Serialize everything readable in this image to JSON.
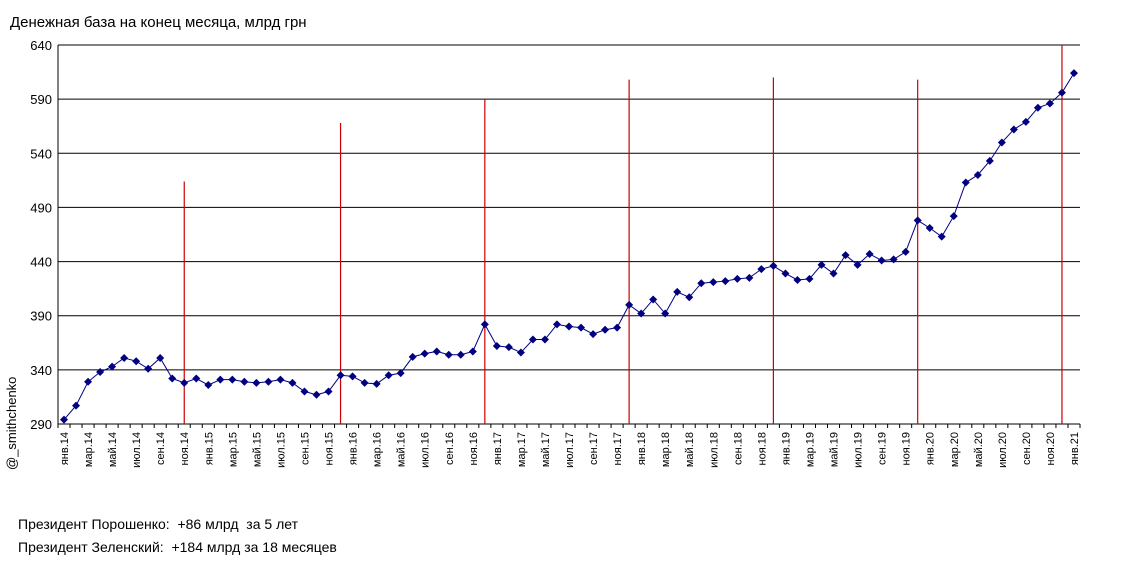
{
  "chart_data": {
    "type": "line",
    "title": "Денежная база на конец месяца, млрд грн",
    "xlabel": "",
    "ylabel": "",
    "ylim": [
      290,
      640
    ],
    "yticks": [
      290,
      340,
      390,
      440,
      490,
      540,
      590,
      640
    ],
    "grid": "horizontal",
    "x": [
      "янв.14",
      "фев.14",
      "мар.14",
      "апр.14",
      "май.14",
      "июн.14",
      "июл.14",
      "авг.14",
      "сен.14",
      "окт.14",
      "ноя.14",
      "дек.14",
      "янв.15",
      "фев.15",
      "мар.15",
      "апр.15",
      "май.15",
      "июн.15",
      "июл.15",
      "авг.15",
      "сен.15",
      "окт.15",
      "ноя.15",
      "дек.15",
      "янв.16",
      "фев.16",
      "мар.16",
      "апр.16",
      "май.16",
      "июн.16",
      "июл.16",
      "авг.16",
      "сен.16",
      "окт.16",
      "ноя.16",
      "дек.16",
      "янв.17",
      "фев.17",
      "мар.17",
      "апр.17",
      "май.17",
      "июн.17",
      "июл.17",
      "авг.17",
      "сен.17",
      "окт.17",
      "ноя.17",
      "дек.17",
      "янв.18",
      "фев.18",
      "мар.18",
      "апр.18",
      "май.18",
      "июн.18",
      "июл.18",
      "авг.18",
      "сен.18",
      "окт.18",
      "ноя.18",
      "дек.18",
      "янв.19",
      "фев.19",
      "мар.19",
      "апр.19",
      "май.19",
      "июн.19",
      "июл.19",
      "авг.19",
      "сен.19",
      "окт.19",
      "ноя.19",
      "дек.19",
      "янв.20",
      "фев.20",
      "мар.20",
      "апр.20",
      "май.20",
      "июн.20",
      "июл.20",
      "авг.20",
      "сен.20",
      "окт.20",
      "ноя.20",
      "дек.20",
      "янв.21"
    ],
    "xtick_labels": [
      "янв.14",
      "мар.14",
      "май.14",
      "июл.14",
      "сен.14",
      "ноя.14",
      "янв.15",
      "мар.15",
      "май.15",
      "июл.15",
      "сен.15",
      "ноя.15",
      "янв.16",
      "мар.16",
      "май.16",
      "июл.16",
      "сен.16",
      "ноя.16",
      "янв.17",
      "мар.17",
      "май.17",
      "июл.17",
      "сен.17",
      "ноя.17",
      "янв.18",
      "мар.18",
      "май.18",
      "июл.18",
      "сен.18",
      "ноя.18",
      "янв.19",
      "мар.19",
      "май.19",
      "июл.19",
      "сен.19",
      "ноя.19",
      "янв.20",
      "мар.20",
      "май.20",
      "июл.20",
      "сен.20",
      "ноя.20",
      "янв.21"
    ],
    "series": [
      {
        "values": [
          294,
          307,
          329,
          338,
          343,
          351,
          348,
          341,
          351,
          332,
          328,
          332,
          326,
          331,
          331,
          329,
          328,
          329,
          331,
          328,
          320,
          317,
          320,
          335,
          334,
          328,
          327,
          335,
          337,
          352,
          355,
          357,
          354,
          354,
          357,
          382,
          362,
          361,
          356,
          368,
          368,
          382,
          380,
          379,
          373,
          377,
          379,
          400,
          392,
          405,
          392,
          412,
          407,
          420,
          421,
          422,
          424,
          425,
          433,
          436,
          429,
          423,
          424,
          437,
          429,
          446,
          437,
          447,
          441,
          442,
          449,
          478,
          471,
          463,
          482,
          513,
          520,
          533,
          550,
          562,
          569,
          582,
          586,
          596,
          614
        ],
        "color": "#000080"
      }
    ],
    "markers": [
      {
        "x": "ноя.14",
        "top_value": 514
      },
      {
        "x": "дек.15",
        "top_value": 568
      },
      {
        "x": "дек.16",
        "top_value": 590
      },
      {
        "x": "дек.17",
        "top_value": 608
      },
      {
        "x": "дек.18",
        "top_value": 610
      },
      {
        "x": "дек.19",
        "top_value": 608
      },
      {
        "x": "дек.20",
        "top_value": 640
      }
    ],
    "marker_color": "#cc0000",
    "grid_color": "#000000"
  },
  "watermark": "@_smithchenko",
  "notes": [
    "Президент Порошенко:  +86 млрд  за 5 лет",
    "Президент Зеленский:  +184 млрд за 18 месяцев"
  ]
}
